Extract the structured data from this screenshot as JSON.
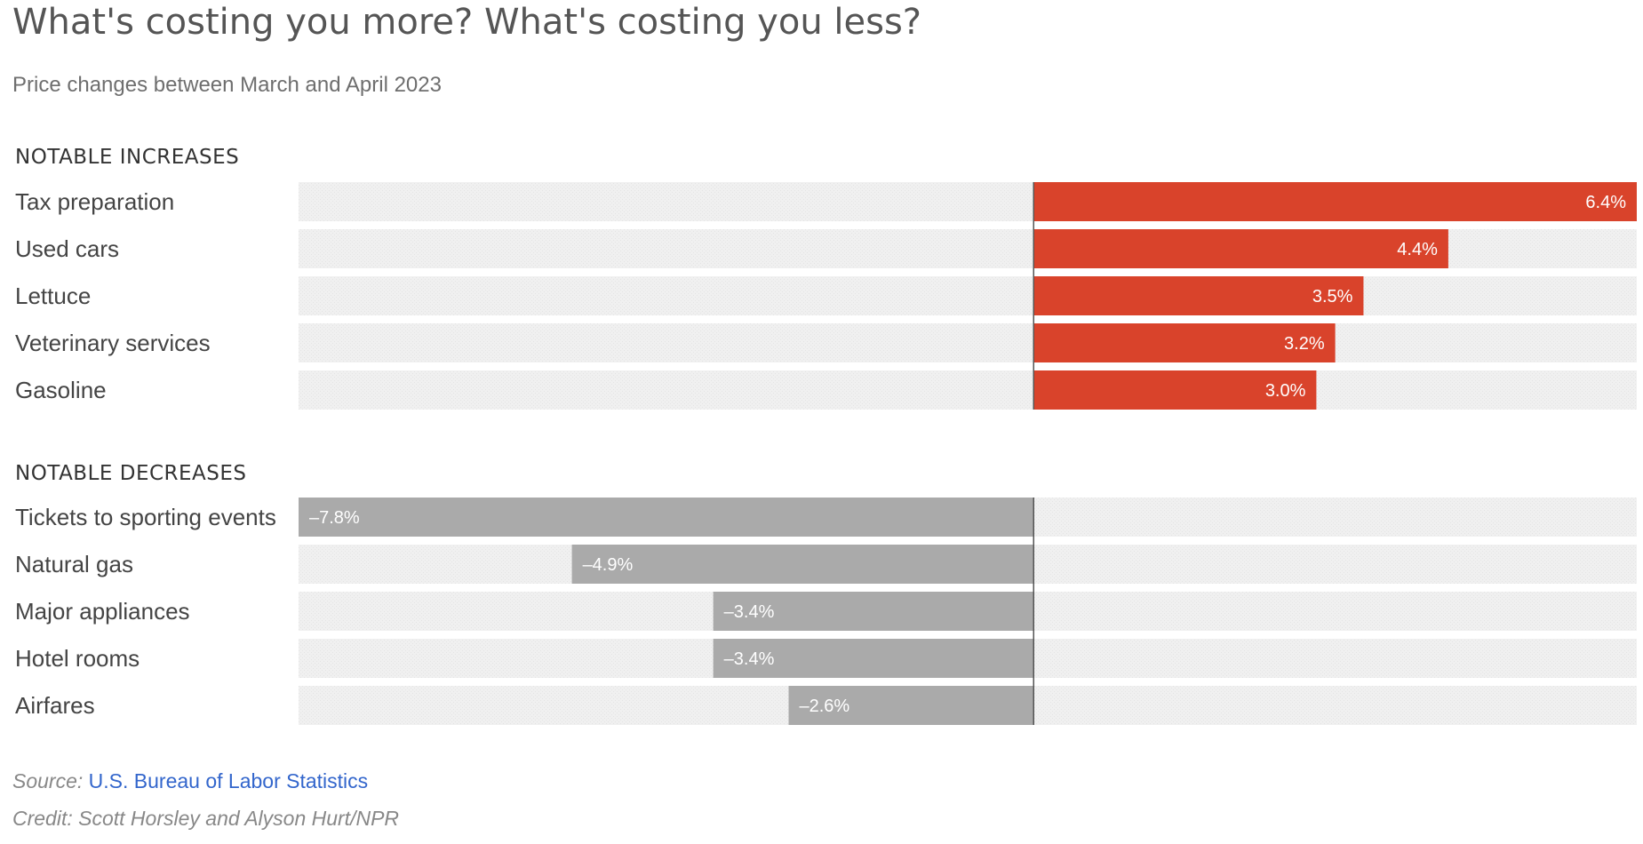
{
  "chart_data": {
    "type": "bar",
    "title": "What's costing you more? What's costing you less?",
    "subtitle": "Price changes between March and April 2023",
    "xlim": [
      -7.8,
      6.4
    ],
    "colors": {
      "increase": "#d9432b",
      "decrease": "#aaaaaa",
      "track": "#f0f0f0",
      "baseline": "#555555"
    },
    "sections": [
      {
        "heading": "NOTABLE INCREASES",
        "items": [
          {
            "category": "Tax preparation",
            "value": 6.4,
            "label": "6.4%"
          },
          {
            "category": "Used cars",
            "value": 4.4,
            "label": "4.4%"
          },
          {
            "category": "Lettuce",
            "value": 3.5,
            "label": "3.5%"
          },
          {
            "category": "Veterinary services",
            "value": 3.2,
            "label": "3.2%"
          },
          {
            "category": "Gasoline",
            "value": 3.0,
            "label": "3.0%"
          }
        ]
      },
      {
        "heading": "NOTABLE DECREASES",
        "items": [
          {
            "category": "Tickets to sporting events",
            "value": -7.8,
            "label": "–7.8%"
          },
          {
            "category": "Natural gas",
            "value": -4.9,
            "label": "–4.9%"
          },
          {
            "category": "Major appliances",
            "value": -3.4,
            "label": "–3.4%"
          },
          {
            "category": "Hotel rooms",
            "value": -3.4,
            "label": "–3.4%"
          },
          {
            "category": "Airfares",
            "value": -2.6,
            "label": "–2.6%"
          }
        ]
      }
    ]
  },
  "footer": {
    "source_prefix": "Source:",
    "source_text": "U.S. Bureau of Labor Statistics",
    "credit": "Credit: Scott Horsley and Alyson Hurt/NPR"
  }
}
